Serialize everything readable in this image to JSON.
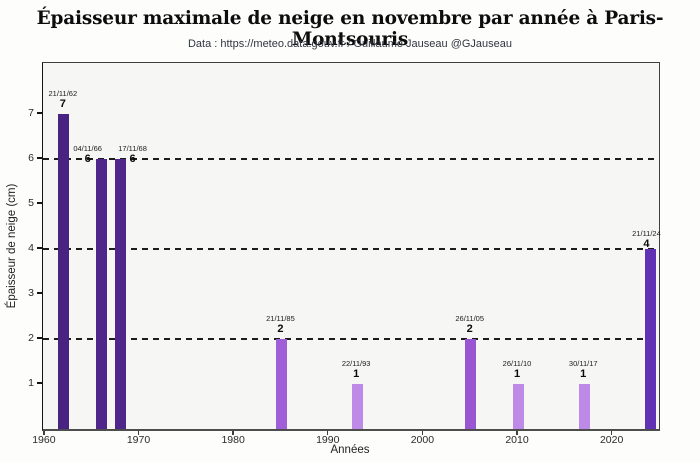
{
  "header": {
    "title": "Épaisseur maximale de neige en novembre par année à Paris-Montsouris",
    "subtitle": "Data : https://meteo.data.gouv.fr / Guillaume Jauseau @GJauseau"
  },
  "chart_data": {
    "type": "bar",
    "title": "Épaisseur maximale de neige en novembre par année à Paris-Montsouris",
    "subtitle": "Data : https://meteo.data.gouv.fr / Guillaume Jauseau @GJauseau",
    "xlabel": "Années",
    "ylabel": "Épaisseur de neige (cm)",
    "x": [
      1962,
      1966,
      1968,
      1985,
      1993,
      2005,
      2010,
      2017,
      2024
    ],
    "values": [
      7,
      6,
      6,
      2,
      1,
      2,
      1,
      1,
      4
    ],
    "bars": [
      {
        "year": 1962,
        "date": "21/11/62",
        "value": 7,
        "color": "#482382",
        "label_dx": 0,
        "label_dy": 0
      },
      {
        "year": 1966,
        "date": "04/11/66",
        "value": 6,
        "color": "#4f2689",
        "label_dx": -13,
        "label_dy": 10
      },
      {
        "year": 1968,
        "date": "17/11/68",
        "value": 6,
        "color": "#4f2689",
        "label_dx": 13,
        "label_dy": 10
      },
      {
        "year": 1985,
        "date": "21/11/85",
        "value": 2,
        "color": "#a05fd6",
        "label_dx": 0,
        "label_dy": 0
      },
      {
        "year": 1993,
        "date": "22/11/93",
        "value": 1,
        "color": "#bd8ae8",
        "label_dx": 0,
        "label_dy": 0
      },
      {
        "year": 2005,
        "date": "26/11/05",
        "value": 2,
        "color": "#9a56d2",
        "label_dx": 0,
        "label_dy": 0
      },
      {
        "year": 2010,
        "date": "26/11/10",
        "value": 1,
        "color": "#bd8ae8",
        "label_dx": 0,
        "label_dy": 0
      },
      {
        "year": 2017,
        "date": "30/11/17",
        "value": 1,
        "color": "#bd8ae8",
        "label_dx": 0,
        "label_dy": 0
      },
      {
        "year": 2024,
        "date": "21/11/24",
        "value": 4,
        "color": "#6232b4",
        "label_dx": -3,
        "label_dy": 5
      }
    ],
    "x_ticks": [
      1960,
      1970,
      1980,
      1990,
      2000,
      2010,
      2020
    ],
    "y_ticks": [
      1,
      2,
      3,
      4,
      5,
      6,
      7
    ],
    "xlim": [
      1959.8,
      2024.9
    ],
    "ylim": [
      0,
      8.13
    ],
    "gridlines_y": [
      2,
      4,
      6
    ],
    "grid_style": "dashed",
    "legend": "none"
  }
}
